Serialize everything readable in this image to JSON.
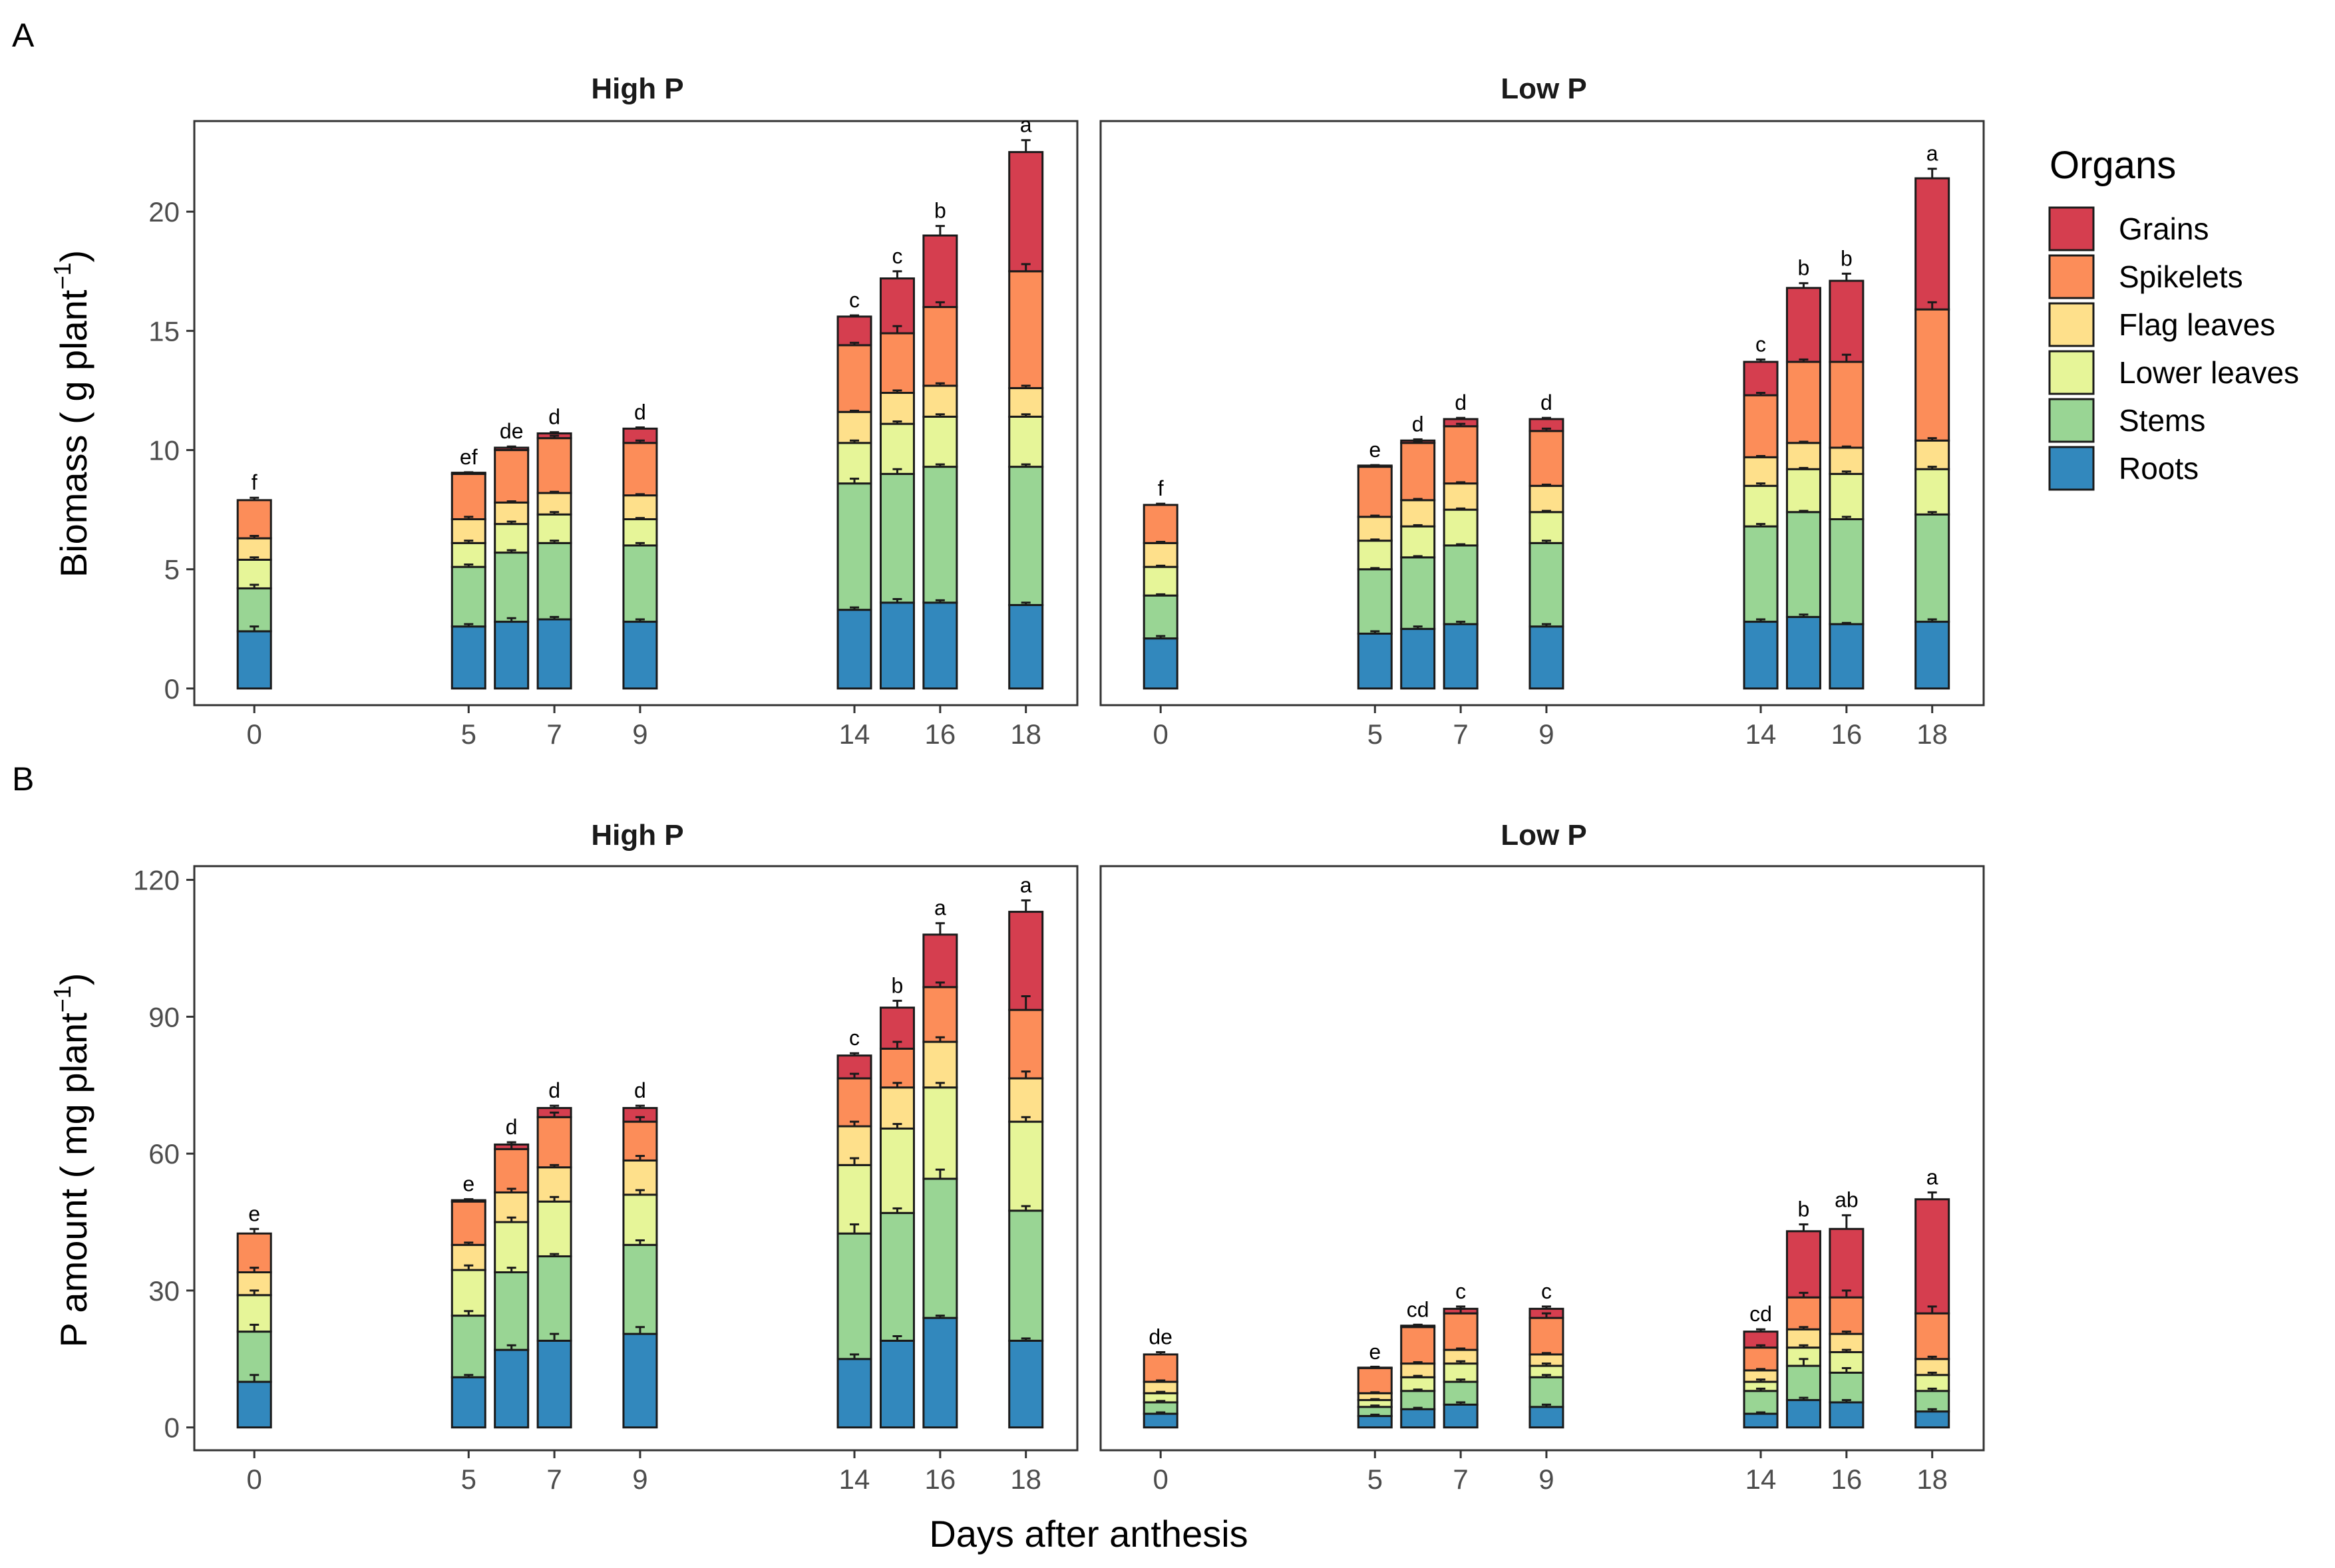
{
  "panel_letters": [
    "A",
    "B"
  ],
  "shared_xlabel": "Days after anthesis",
  "legend": {
    "title": "Organs",
    "items": [
      {
        "name": "Grains",
        "color": "#d53e4f"
      },
      {
        "name": "Spikelets",
        "color": "#fc8d59"
      },
      {
        "name": "Flag leaves",
        "color": "#fee08b"
      },
      {
        "name": "Lower leaves",
        "color": "#e6f598"
      },
      {
        "name": "Stems",
        "color": "#99d594"
      },
      {
        "name": "Roots",
        "color": "#3288bd"
      }
    ]
  },
  "chart_data": [
    {
      "type": "bar",
      "stacked": true,
      "title": "A",
      "ylabel": "Biomass ( g plant^-1 )",
      "ylabel_main": "Biomass ( g plant",
      "ylabel_sup": "−1",
      "ylabel_end": ")",
      "ylim": [
        -0.7,
        23.8
      ],
      "yticks": [
        0,
        5,
        10,
        15,
        20
      ],
      "xlim": [
        -1.4,
        19.2
      ],
      "xticks": [
        0,
        5,
        7,
        9,
        14,
        16,
        18
      ],
      "series_order": [
        "Roots",
        "Stems",
        "Lower leaves",
        "Flag leaves",
        "Spikelets",
        "Grains"
      ],
      "facets": [
        {
          "name": "High P",
          "bars": [
            {
              "day": 0,
              "letter": "f",
              "values": [
                2.4,
                1.8,
                1.2,
                0.9,
                1.6,
                0
              ],
              "errors": [
                0.2,
                0.15,
                0.1,
                0.1,
                0.1,
                0
              ]
            },
            {
              "day": 5,
              "letter": "ef",
              "values": [
                2.6,
                2.5,
                1.0,
                1.0,
                1.9,
                0.05
              ],
              "errors": [
                0.1,
                0.1,
                0.1,
                0.1,
                0.05,
                0.02
              ]
            },
            {
              "day": 6,
              "letter": "de",
              "values": [
                2.8,
                2.9,
                1.2,
                0.9,
                2.2,
                0.1
              ],
              "errors": [
                0.15,
                0.1,
                0.1,
                0.05,
                0.1,
                0.05
              ]
            },
            {
              "day": 7,
              "letter": "d",
              "values": [
                2.9,
                3.2,
                1.2,
                0.9,
                2.3,
                0.2
              ],
              "errors": [
                0.1,
                0.1,
                0.1,
                0.05,
                0.1,
                0.05
              ]
            },
            {
              "day": 9,
              "letter": "d",
              "values": [
                2.8,
                3.2,
                1.1,
                1.0,
                2.2,
                0.6
              ],
              "errors": [
                0.1,
                0.1,
                0.05,
                0.05,
                0.1,
                0.05
              ]
            },
            {
              "day": 14,
              "letter": "c",
              "values": [
                3.3,
                5.3,
                1.7,
                1.3,
                2.8,
                1.2
              ],
              "errors": [
                0.1,
                0.2,
                0.1,
                0.05,
                0.1,
                0.05
              ]
            },
            {
              "day": 15,
              "letter": "c",
              "values": [
                3.6,
                5.4,
                2.1,
                1.3,
                2.5,
                2.3
              ],
              "errors": [
                0.15,
                0.2,
                0.1,
                0.1,
                0.3,
                0.3
              ]
            },
            {
              "day": 16,
              "letter": "b",
              "values": [
                3.6,
                5.7,
                2.1,
                1.3,
                3.3,
                3.0
              ],
              "errors": [
                0.1,
                0.1,
                0.1,
                0.1,
                0.2,
                0.4
              ]
            },
            {
              "day": 18,
              "letter": "a",
              "values": [
                3.5,
                5.8,
                2.1,
                1.2,
                4.9,
                5.0
              ],
              "errors": [
                0.1,
                0.1,
                0.1,
                0.1,
                0.3,
                0.5
              ]
            }
          ]
        },
        {
          "name": "Low P",
          "bars": [
            {
              "day": 0,
              "letter": "f",
              "values": [
                2.1,
                1.8,
                1.2,
                1.0,
                1.6,
                0
              ],
              "errors": [
                0.1,
                0.05,
                0.05,
                0.05,
                0.05,
                0
              ]
            },
            {
              "day": 5,
              "letter": "e",
              "values": [
                2.3,
                2.7,
                1.2,
                1.0,
                2.1,
                0.05
              ],
              "errors": [
                0.1,
                0.05,
                0.05,
                0.05,
                0.05,
                0.02
              ]
            },
            {
              "day": 6,
              "letter": "d",
              "values": [
                2.5,
                3.0,
                1.3,
                1.1,
                2.4,
                0.1
              ],
              "errors": [
                0.1,
                0.05,
                0.05,
                0.05,
                0.05,
                0.05
              ]
            },
            {
              "day": 7,
              "letter": "d",
              "values": [
                2.7,
                3.3,
                1.5,
                1.1,
                2.4,
                0.3
              ],
              "errors": [
                0.1,
                0.05,
                0.05,
                0.05,
                0.1,
                0.05
              ]
            },
            {
              "day": 9,
              "letter": "d",
              "values": [
                2.6,
                3.5,
                1.3,
                1.1,
                2.3,
                0.5
              ],
              "errors": [
                0.1,
                0.1,
                0.05,
                0.05,
                0.1,
                0.05
              ]
            },
            {
              "day": 14,
              "letter": "c",
              "values": [
                2.8,
                4.0,
                1.7,
                1.2,
                2.6,
                1.4
              ],
              "errors": [
                0.1,
                0.1,
                0.1,
                0.05,
                0.1,
                0.1
              ]
            },
            {
              "day": 15,
              "letter": "b",
              "values": [
                3.0,
                4.4,
                1.8,
                1.1,
                3.4,
                3.1
              ],
              "errors": [
                0.1,
                0.05,
                0.05,
                0.05,
                0.1,
                0.2
              ]
            },
            {
              "day": 16,
              "letter": "b",
              "values": [
                2.7,
                4.4,
                1.9,
                1.1,
                3.6,
                3.4
              ],
              "errors": [
                0.05,
                0.1,
                0.1,
                0.05,
                0.3,
                0.3
              ]
            },
            {
              "day": 18,
              "letter": "a",
              "values": [
                2.8,
                4.5,
                1.9,
                1.2,
                5.5,
                5.5
              ],
              "errors": [
                0.1,
                0.1,
                0.1,
                0.1,
                0.3,
                0.4
              ]
            }
          ]
        }
      ]
    },
    {
      "type": "bar",
      "stacked": true,
      "title": "B",
      "ylabel": "P amount ( mg plant^-1 )",
      "ylabel_main": "P amount ( mg plant",
      "ylabel_sup": "−1",
      "ylabel_end": ")",
      "ylim": [
        -5,
        123
      ],
      "yticks": [
        0,
        30,
        60,
        90,
        120
      ],
      "xlim": [
        -1.4,
        19.2
      ],
      "xticks": [
        0,
        5,
        7,
        9,
        14,
        16,
        18
      ],
      "series_order": [
        "Roots",
        "Stems",
        "Lower leaves",
        "Flag leaves",
        "Spikelets",
        "Grains"
      ],
      "facets": [
        {
          "name": "High P",
          "bars": [
            {
              "day": 0,
              "letter": "e",
              "values": [
                10,
                11,
                8,
                5,
                8.5,
                0
              ],
              "errors": [
                1.5,
                1.5,
                1,
                1,
                1,
                0
              ]
            },
            {
              "day": 5,
              "letter": "e",
              "values": [
                11,
                13.5,
                10,
                5.5,
                9.5,
                0.3
              ],
              "errors": [
                0.5,
                1,
                1,
                0.5,
                0.5,
                0.2
              ]
            },
            {
              "day": 6,
              "letter": "d",
              "values": [
                17,
                17,
                11,
                6.5,
                9.5,
                1
              ],
              "errors": [
                1,
                1,
                1,
                0.8,
                1,
                0.5
              ]
            },
            {
              "day": 7,
              "letter": "d",
              "values": [
                19,
                18.5,
                12,
                7.5,
                11,
                2
              ],
              "errors": [
                1.5,
                0.5,
                1,
                0.5,
                1,
                0.5
              ]
            },
            {
              "day": 9,
              "letter": "d",
              "values": [
                20.5,
                19.5,
                11,
                7.5,
                8.5,
                3
              ],
              "errors": [
                1.5,
                1,
                1,
                1,
                1,
                0.5
              ]
            },
            {
              "day": 14,
              "letter": "c",
              "values": [
                15,
                27.5,
                15,
                8.5,
                10.5,
                5
              ],
              "errors": [
                1,
                2,
                1.5,
                1,
                1,
                0.5
              ]
            },
            {
              "day": 15,
              "letter": "b",
              "values": [
                19,
                28,
                18.5,
                9,
                8.5,
                9
              ],
              "errors": [
                1,
                1,
                1,
                1,
                1.5,
                1.5
              ]
            },
            {
              "day": 16,
              "letter": "a",
              "values": [
                24,
                30.5,
                20,
                10,
                12,
                11.5
              ],
              "errors": [
                0.5,
                2,
                1,
                1,
                1,
                2.5
              ]
            },
            {
              "day": 18,
              "letter": "a",
              "values": [
                19,
                28.5,
                19.5,
                9.5,
                15,
                21.5
              ],
              "errors": [
                0.5,
                1,
                1,
                1.5,
                3,
                2.5
              ]
            }
          ]
        },
        {
          "name": "Low P",
          "bars": [
            {
              "day": 0,
              "letter": "de",
              "values": [
                3,
                2.5,
                2,
                2.5,
                6,
                0
              ],
              "errors": [
                0.3,
                0.3,
                0.3,
                0.3,
                0.5,
                0
              ]
            },
            {
              "day": 5,
              "letter": "e",
              "values": [
                2.5,
                2,
                1.5,
                1.5,
                5.5,
                0.1
              ],
              "errors": [
                0.3,
                0.3,
                0.2,
                0.2,
                0.3,
                0.1
              ]
            },
            {
              "day": 6,
              "letter": "cd",
              "values": [
                4,
                4,
                3,
                3,
                8,
                0.3
              ],
              "errors": [
                0.3,
                0.3,
                0.3,
                0.3,
                0.5,
                0.2
              ]
            },
            {
              "day": 7,
              "letter": "c",
              "values": [
                5,
                5,
                4,
                3,
                8,
                1
              ],
              "errors": [
                0.5,
                0.5,
                0.5,
                0.3,
                1,
                0.5
              ]
            },
            {
              "day": 9,
              "letter": "c",
              "values": [
                4.5,
                6.5,
                2.5,
                2.5,
                8,
                2
              ],
              "errors": [
                0.5,
                0.5,
                0.5,
                0.3,
                1,
                0.5
              ]
            },
            {
              "day": 14,
              "letter": "cd",
              "values": [
                3,
                5,
                2,
                2.5,
                5,
                3.5
              ],
              "errors": [
                0.3,
                0.5,
                0.5,
                0.3,
                0.5,
                0.5
              ]
            },
            {
              "day": 15,
              "letter": "b",
              "values": [
                6,
                7.5,
                4,
                4,
                7,
                14.5
              ],
              "errors": [
                0.5,
                1.5,
                0.5,
                0.5,
                1,
                1.5
              ]
            },
            {
              "day": 16,
              "letter": "ab",
              "values": [
                5.5,
                6.5,
                4.5,
                4,
                8,
                15
              ],
              "errors": [
                0.5,
                1,
                0.5,
                0.5,
                1.5,
                3
              ]
            },
            {
              "day": 18,
              "letter": "a",
              "values": [
                3.5,
                4.5,
                3.5,
                3.5,
                10,
                25
              ],
              "errors": [
                0.5,
                0.5,
                0.5,
                0.5,
                1.5,
                1.5
              ]
            }
          ]
        }
      ]
    }
  ]
}
